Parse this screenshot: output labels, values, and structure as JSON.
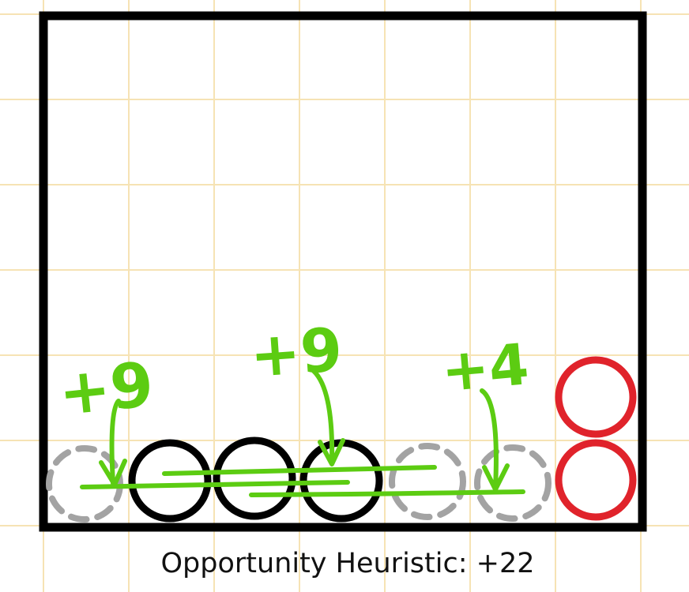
{
  "caption": "Opportunity Heuristic: +22",
  "annotations": [
    {
      "label": "+9",
      "column": 1
    },
    {
      "label": "+9",
      "column": 4
    },
    {
      "label": "+4",
      "column": 6
    }
  ],
  "pieces": [
    {
      "type": "empty-slot",
      "column": 1,
      "row": 1,
      "style": "dashed"
    },
    {
      "type": "black-disc",
      "column": 2,
      "row": 1
    },
    {
      "type": "black-disc",
      "column": 3,
      "row": 1
    },
    {
      "type": "black-disc",
      "column": 4,
      "row": 1
    },
    {
      "type": "empty-slot",
      "column": 5,
      "row": 1,
      "style": "dashed"
    },
    {
      "type": "empty-slot",
      "column": 6,
      "row": 1,
      "style": "dashed"
    },
    {
      "type": "red-disc",
      "column": 7,
      "row": 1
    },
    {
      "type": "red-disc",
      "column": 7,
      "row": 2
    }
  ],
  "colors": {
    "grid": "#f6e3b4",
    "frame": "#000000",
    "black_disc": "#000000",
    "red_disc": "#e0232b",
    "empty_slot": "#a3a3a3",
    "annotation": "#5ccc12"
  }
}
